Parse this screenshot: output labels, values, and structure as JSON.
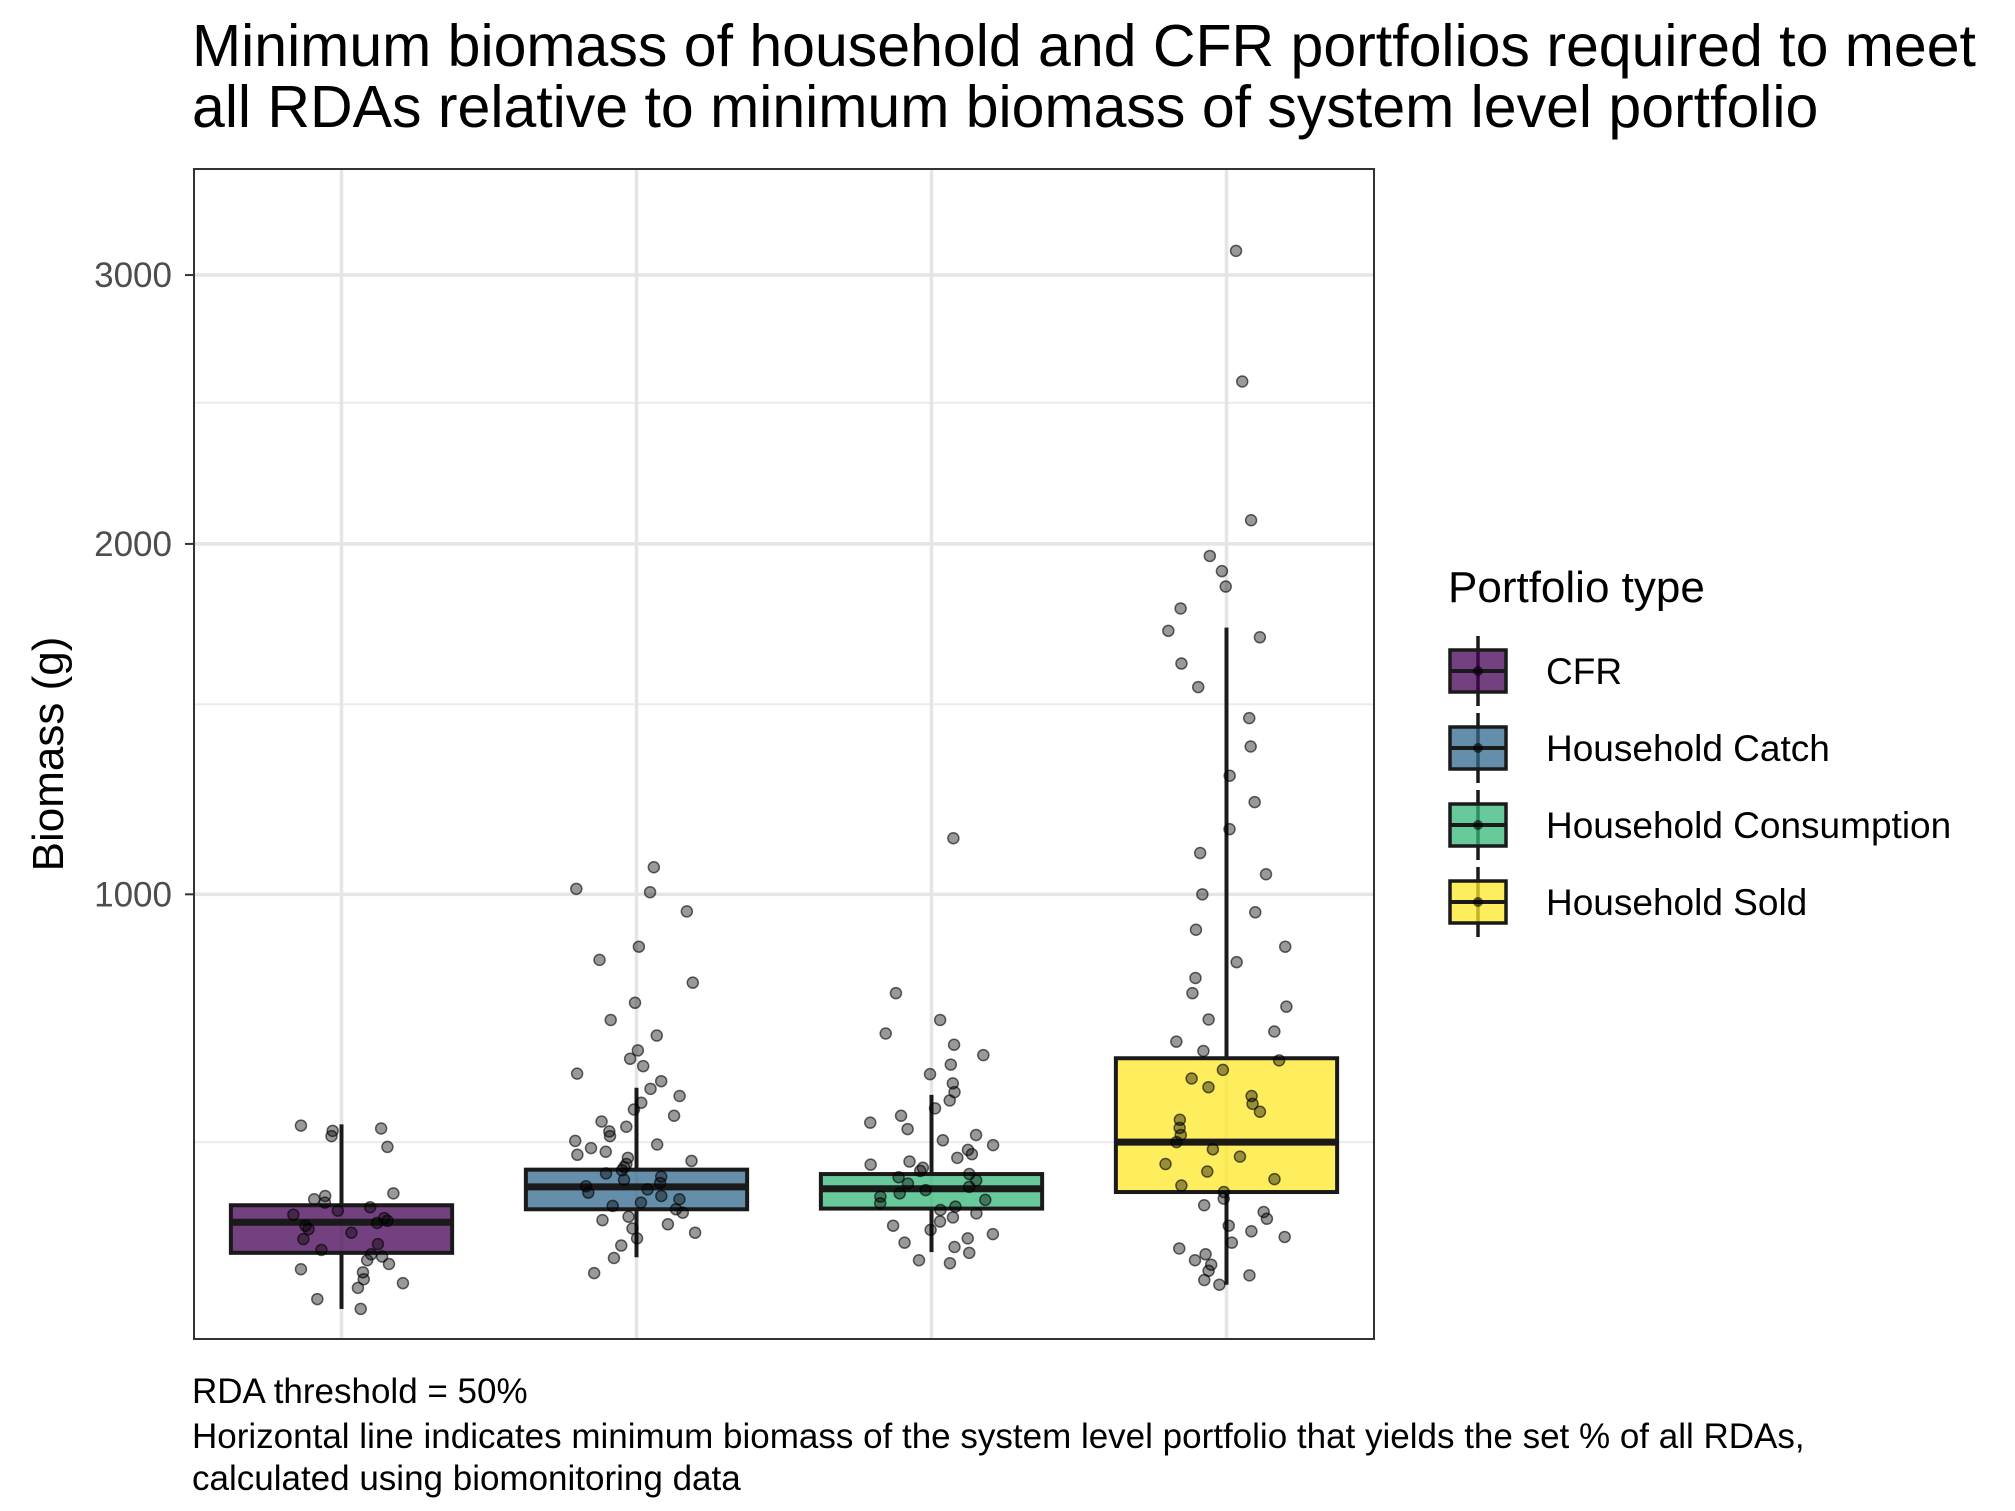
{
  "chart_data": {
    "type": "box",
    "title_lines": [
      "Minimum biomass of household and CFR portfolios required to meet",
      "all RDAs relative to minimum biomass of system level portfolio"
    ],
    "xlabel": "",
    "ylabel": "Biomass (g)",
    "y_scale": "sqrt",
    "ylim": [
      225,
      3450
    ],
    "y_ticks": [
      1000,
      2000,
      3000
    ],
    "y_tick_labels": [
      "1000",
      "2000",
      "3000"
    ],
    "y_minor_ticks": [
      500,
      1500,
      2500
    ],
    "grid": true,
    "legend": {
      "title": "Portfolio type",
      "position": "right",
      "entries": [
        "CFR",
        "Household Catch",
        "Household Consumption",
        "Household Sold"
      ]
    },
    "colors": {
      "CFR": "#440154",
      "Household Catch": "#31688e",
      "Household Consumption": "#35b779",
      "Household Sold": "#fde725"
    },
    "box_alpha": 0.75,
    "point_color": "#000000",
    "point_alpha": 0.4,
    "caption_lines": [
      "RDA threshold = 50%",
      "Horizontal line indicates minimum biomass of the system level portfolio that yields the set % of all RDAs,",
      "calculated using biomonitoring data"
    ],
    "series": [
      {
        "name": "CFR",
        "box": {
          "whisker_low": 260,
          "q1": 332,
          "median": 375,
          "q3": 400,
          "whisker_high": 530
        },
        "points": [
          260,
          272,
          286,
          292,
          297,
          306,
          310,
          317,
          322,
          327,
          330,
          336,
          344,
          351,
          360,
          365,
          370,
          374,
          377,
          381,
          386,
          392,
          397,
          404,
          409,
          414,
          418,
          492,
          510,
          519,
          523,
          528
        ]
      },
      {
        "name": "Household Catch",
        "box": {
          "whisker_low": 326,
          "q1": 394,
          "median": 428,
          "q3": 455,
          "whisker_high": 595
        },
        "points": [
          305,
          325,
          342,
          352,
          360,
          366,
          372,
          378,
          383,
          389,
          394,
          399,
          404,
          409,
          414,
          419,
          424,
          429,
          434,
          439,
          444,
          449,
          454,
          459,
          464,
          469,
          474,
          479,
          484,
          490,
          496,
          502,
          510,
          518,
          526,
          535,
          545,
          556,
          568,
          580,
          593,
          607,
          621,
          635,
          649,
          665,
          694,
          725,
          760,
          802,
          851,
          880,
          960,
          1005,
          1013,
          1065
        ]
      },
      {
        "name": "Household Consumption",
        "box": {
          "whisker_low": 333,
          "q1": 395,
          "median": 425,
          "q3": 448,
          "whisker_high": 582
        },
        "points": [
          318,
          322,
          332,
          340,
          346,
          352,
          358,
          364,
          370,
          376,
          382,
          388,
          393,
          398,
          403,
          408,
          413,
          418,
          423,
          428,
          433,
          438,
          443,
          448,
          453,
          458,
          463,
          468,
          474,
          480,
          487,
          495,
          503,
          512,
          522,
          533,
          545,
          558,
          572,
          587,
          603,
          620,
          638,
          656,
          676,
          698,
          725,
          780,
          1137
        ]
      },
      {
        "name": "Household Sold",
        "box": {
          "whisker_low": 290,
          "q1": 420,
          "median": 500,
          "q3": 650,
          "whisker_high": 1730
        },
        "points": [
          290,
          296,
          302,
          308,
          316,
          322,
          330,
          338,
          346,
          354,
          362,
          370,
          380,
          390,
          400,
          410,
          420,
          430,
          440,
          452,
          464,
          476,
          488,
          500,
          512,
          524,
          538,
          552,
          566,
          580,
          596,
          612,
          628,
          646,
          664,
          682,
          702,
          726,
          752,
          780,
          812,
          846,
          880,
          918,
          958,
          1000,
          1048,
          1100,
          1160,
          1230,
          1300,
          1380,
          1460,
          1550,
          1620,
          1700,
          1720,
          1790,
          1860,
          1910,
          1960,
          2080,
          2580,
          3100
        ]
      }
    ]
  }
}
